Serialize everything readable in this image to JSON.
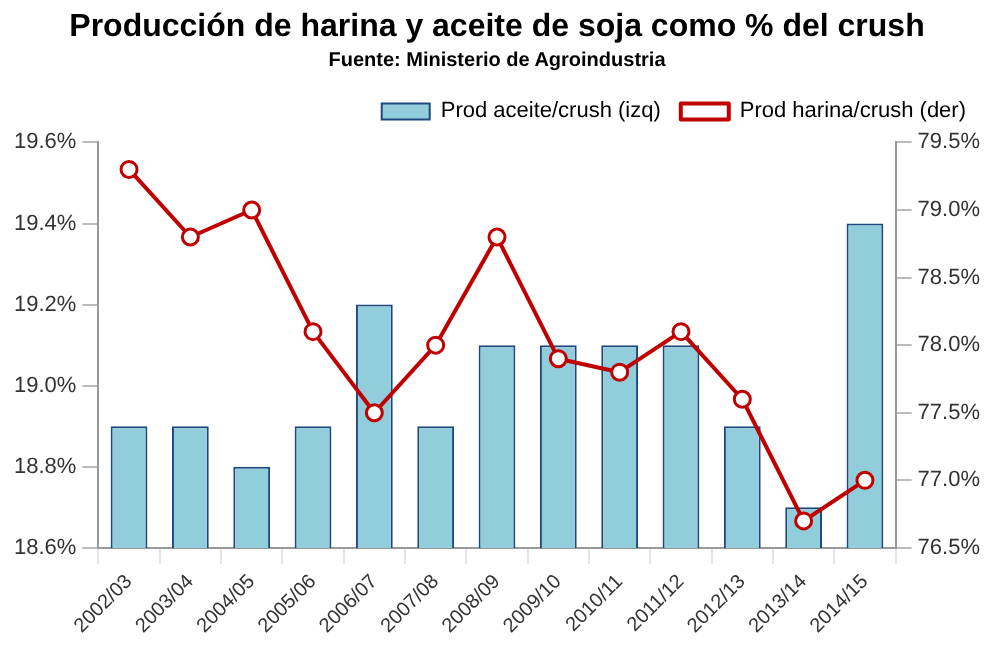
{
  "chart_data": {
    "type": "bar",
    "title": "Producción de harina y aceite de soja como % del crush",
    "subtitle": "Fuente: Ministerio de Agroindustria",
    "categories": [
      "2002/03",
      "2003/04",
      "2004/05",
      "2005/06",
      "2006/07",
      "2007/08",
      "2008/09",
      "2009/10",
      "2010/11",
      "2011/12",
      "2012/13",
      "2013/14",
      "2014/15"
    ],
    "series": [
      {
        "name": "Prod aceite/crush (izq)",
        "color": "#92cddc",
        "values": [
          18.9,
          18.9,
          18.8,
          18.9,
          19.2,
          18.9,
          19.1,
          19.1,
          19.1,
          19.1,
          18.9,
          18.7,
          19.4
        ]
      },
      {
        "name": "Prod harina/crush (der)",
        "type": "line",
        "axis": "y2",
        "color": "#c00000",
        "marker": "circle",
        "values": [
          79.3,
          78.8,
          79.0,
          78.1,
          77.5,
          78.0,
          78.8,
          77.9,
          77.8,
          78.1,
          77.6,
          76.7,
          77.0
        ]
      }
    ],
    "ylim": [
      18.6,
      19.6
    ],
    "yticks": [
      {
        "value": 18.6,
        "label": "18.6%"
      },
      {
        "value": 18.8,
        "label": "18.8%"
      },
      {
        "value": 19.0,
        "label": "19.0%"
      },
      {
        "value": 19.2,
        "label": "19.2%"
      },
      {
        "value": 19.4,
        "label": "19.4%"
      },
      {
        "value": 19.6,
        "label": "19.6%"
      }
    ],
    "y2lim": [
      76.5,
      79.5
    ],
    "y2ticks": [
      {
        "value": 76.5,
        "label": "76.5%"
      },
      {
        "value": 77.0,
        "label": "77.0%"
      },
      {
        "value": 77.5,
        "label": "77.5%"
      },
      {
        "value": 78.0,
        "label": "78.0%"
      },
      {
        "value": 78.5,
        "label": "78.5%"
      },
      {
        "value": 79.0,
        "label": "79.0%"
      },
      {
        "value": 79.5,
        "label": "79.5%"
      }
    ],
    "grid": false,
    "legend": "top right"
  }
}
